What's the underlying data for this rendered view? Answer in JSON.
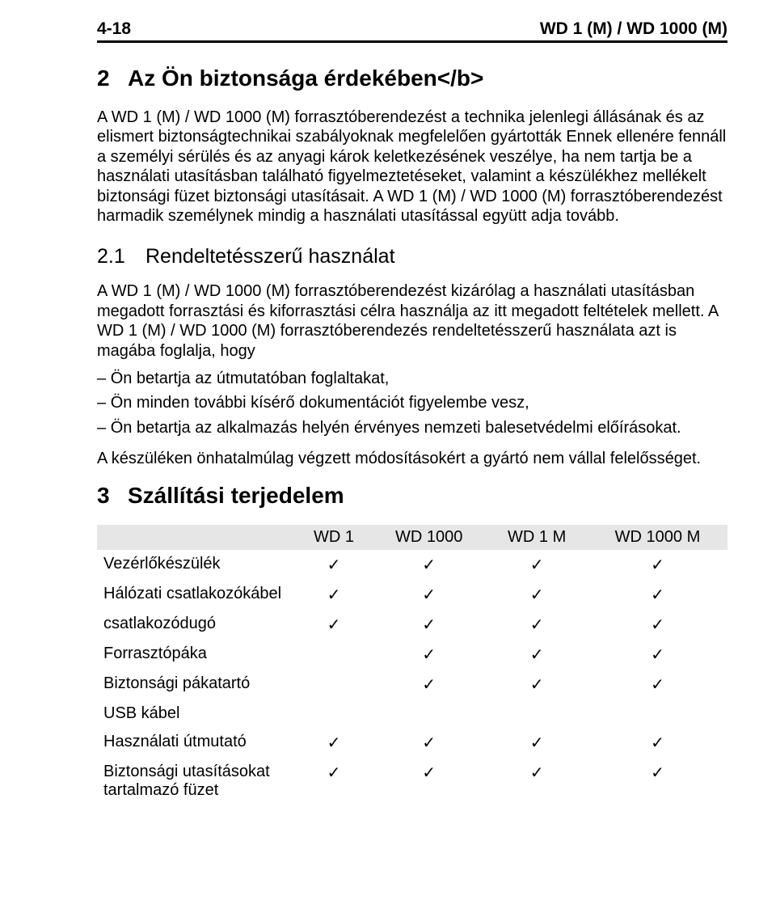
{
  "header": {
    "page_number": "4-18",
    "doc_title": "WD 1 (M) / WD 1000 (M)"
  },
  "section2": {
    "number": "2",
    "title": "Az Ön biztonsága érdekében</b>",
    "para": "A WD 1 (M) / WD 1000 (M) forrasztóberendezést a technika jelenlegi állásának és az elismert biztonságtechnikai szabályoknak megfelelően gyártották Ennek ellenére fennáll a személyi sérülés és az anyagi károk keletkezésének veszélye, ha nem tartja be a használati utasításban található figyelmeztetéseket, valamint a készülékhez mellékelt biztonsági füzet biztonsági utasításait. A WD 1 (M) / WD 1000 (M) forrasztóberendezést harmadik személynek mindig a használati utasítással együtt adja tovább."
  },
  "section2_1": {
    "number": "2.1",
    "title": "Rendeltetésszerű használat",
    "para1": "A WD 1 (M) / WD 1000 (M) forrasztóberendezést kizárólag a használati utasításban megadott forrasztási és kiforrasztási célra használja az itt megadott feltételek mellett. A WD 1 (M) / WD 1000 (M) forrasztóberendezés rendeltetésszerű használata azt is magába foglalja, hogy",
    "bullets": [
      "Ön betartja az útmutatóban foglaltakat,",
      "Ön minden további kísérő dokumentációt figyelembe vesz,",
      "Ön betartja az alkalmazás helyén érvényes nemzeti balesetvédelmi előírásokat."
    ],
    "para2": "A készüléken önhatalmúlag végzett módosításokért a gyártó nem vállal felelősséget."
  },
  "section3": {
    "number": "3",
    "title": "Szállítási terjedelem",
    "columns": [
      "WD 1",
      "WD 1000",
      "WD 1 M",
      "WD 1000 M"
    ],
    "check": "✓",
    "rows": [
      {
        "label": "Vezérlőkészülék",
        "c": [
          true,
          true,
          true,
          true
        ]
      },
      {
        "label": "Hálózati csatlakozókábel",
        "c": [
          true,
          true,
          true,
          true
        ]
      },
      {
        "label": "csatlakozódugó",
        "c": [
          true,
          true,
          true,
          true
        ]
      },
      {
        "label": "Forrasztópáka",
        "c": [
          false,
          true,
          true,
          true
        ]
      },
      {
        "label": "Biztonsági pákatartó",
        "c": [
          false,
          true,
          true,
          true
        ]
      },
      {
        "label": "USB kábel",
        "c": [
          false,
          false,
          false,
          false
        ]
      },
      {
        "label": "Használati útmutató",
        "c": [
          true,
          true,
          true,
          true
        ]
      },
      {
        "label": "Biztonsági utasításokat tartalmazó füzet",
        "c": [
          true,
          true,
          true,
          true
        ]
      }
    ]
  }
}
